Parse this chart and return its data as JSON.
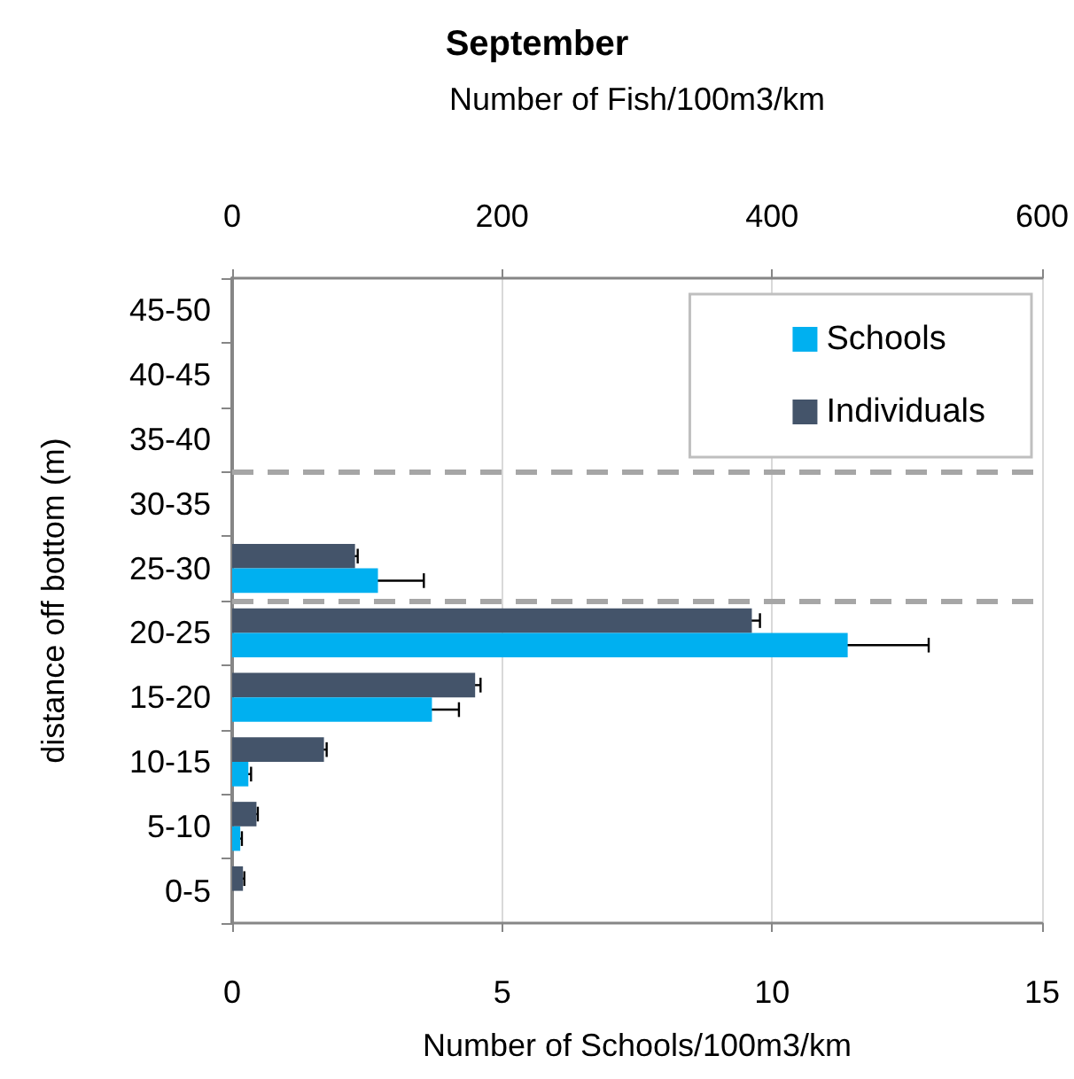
{
  "chart_data": {
    "type": "bar",
    "orientation": "horizontal",
    "title": "September",
    "xlabel": "Number of Schools/100m3/km",
    "x2label": "Number of Fish/100m3/km",
    "ylabel": "distance off bottom (m)",
    "categories": [
      "45-50",
      "40-45",
      "35-40",
      "30-35",
      "25-30",
      "20-25",
      "15-20",
      "10-15",
      "5-10",
      "0-5"
    ],
    "series": [
      {
        "name": "Schools",
        "color": "#00b0f0",
        "values": [
          null,
          null,
          null,
          null,
          2.7,
          11.4,
          3.7,
          0.3,
          0.15,
          0
        ],
        "errors": [
          null,
          null,
          null,
          null,
          0.85,
          1.5,
          0.5,
          0.05,
          0.03,
          null
        ]
      },
      {
        "name": "Individuals",
        "color": "#44546a",
        "axis": "x2",
        "values": [
          null,
          null,
          null,
          null,
          91,
          385,
          180,
          68,
          18,
          8
        ],
        "errors": [
          null,
          null,
          null,
          null,
          2,
          6,
          4,
          2,
          1,
          1
        ]
      }
    ],
    "xlim": [
      0,
      15
    ],
    "xticks": [
      0,
      5,
      10,
      15
    ],
    "x2lim": [
      0,
      600
    ],
    "x2ticks": [
      0,
      200,
      400,
      600
    ],
    "grid": "x",
    "legend": "top right"
  }
}
